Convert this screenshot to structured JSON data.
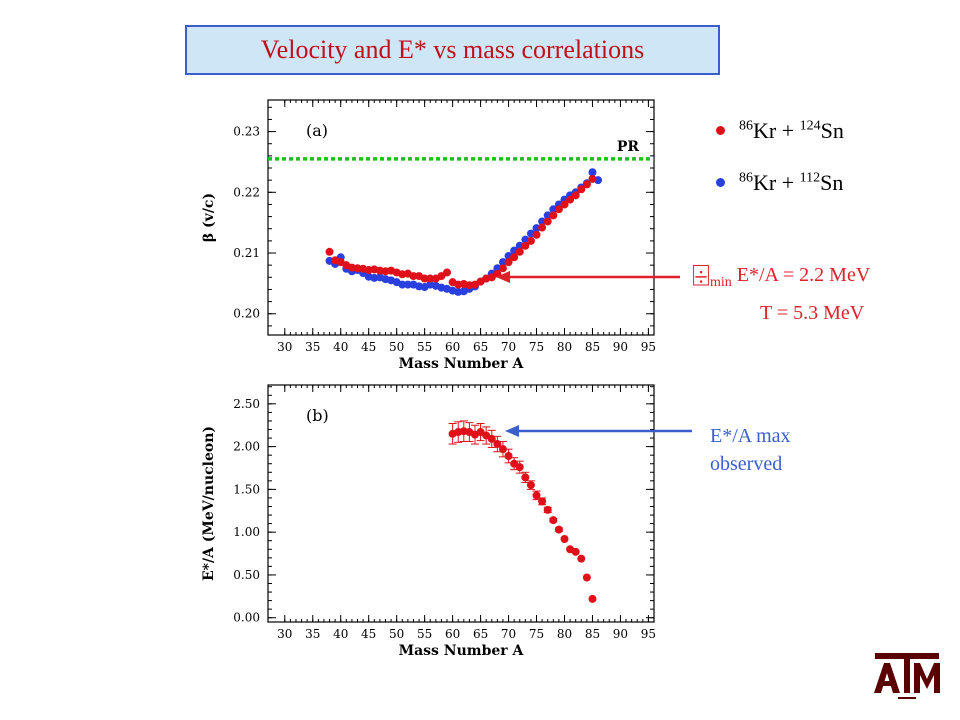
{
  "title": "Velocity and E* vs  mass   correlations",
  "legend": [
    {
      "color": "#e0101a",
      "label_html": "<sup>86</sup>Kr + <sup>124</sup>Sn"
    },
    {
      "color": "#2a3fe0",
      "label_html": "<sup>86</sup>Kr + <sup>112</sup>Sn"
    }
  ],
  "annotation_a": {
    "symbol": "⌹",
    "sub": "min",
    "line1": " E*/A = 2.2 MeV",
    "line2": "T = 5.3 MeV"
  },
  "annotation_b": {
    "line1": "E*/A max",
    "line2": "observed"
  },
  "chart_data": [
    {
      "type": "scatter",
      "panel_label": "(a)",
      "ylabel": "β (v/c)",
      "xlabel": "Mass Number A",
      "xlim": [
        27,
        96
      ],
      "ylim": [
        0.1965,
        0.2352
      ],
      "xticks": [
        30,
        35,
        40,
        45,
        50,
        55,
        60,
        65,
        70,
        75,
        80,
        85,
        90,
        95
      ],
      "yticks": [
        0.2,
        0.21,
        0.22,
        0.23
      ],
      "yticklabels": [
        "0.20",
        "0.21",
        "0.22",
        "0.23"
      ],
      "reference_line": {
        "label": "PR",
        "y": 0.2255,
        "color": "#19c219"
      },
      "series": [
        {
          "name": "86Kr + 124Sn",
          "color": "#e0101a",
          "x": [
            38,
            39,
            40,
            41,
            42,
            43,
            44,
            45,
            46,
            47,
            48,
            49,
            50,
            51,
            52,
            53,
            54,
            55,
            56,
            57,
            58,
            59,
            60,
            61,
            62,
            63,
            64,
            65,
            66,
            67,
            68,
            69,
            70,
            71,
            72,
            73,
            74,
            75,
            76,
            77,
            78,
            79,
            80,
            81,
            82,
            83,
            84,
            85
          ],
          "y": [
            0.2102,
            0.2088,
            0.2085,
            0.208,
            0.2076,
            0.2075,
            0.2074,
            0.2072,
            0.2073,
            0.2071,
            0.207,
            0.2071,
            0.2068,
            0.2065,
            0.2066,
            0.2062,
            0.2062,
            0.2058,
            0.2058,
            0.2058,
            0.2062,
            0.2068,
            0.2052,
            0.2048,
            0.2049,
            0.2047,
            0.2048,
            0.2053,
            0.2058,
            0.206,
            0.2066,
            0.2075,
            0.2085,
            0.2093,
            0.2102,
            0.2112,
            0.212,
            0.213,
            0.2142,
            0.2152,
            0.2162,
            0.2172,
            0.218,
            0.2188,
            0.2195,
            0.2205,
            0.2213,
            0.2222
          ]
        },
        {
          "name": "86Kr + 112Sn",
          "color": "#2a3fe0",
          "x": [
            38,
            39,
            40,
            41,
            42,
            43,
            44,
            45,
            46,
            47,
            48,
            49,
            50,
            51,
            52,
            53,
            54,
            55,
            56,
            57,
            58,
            59,
            60,
            61,
            62,
            63,
            64,
            65,
            66,
            67,
            68,
            69,
            70,
            71,
            72,
            73,
            74,
            75,
            76,
            77,
            78,
            79,
            80,
            81,
            82,
            83,
            84,
            85,
            86
          ],
          "y": [
            0.2087,
            0.2082,
            0.2093,
            0.2074,
            0.207,
            0.2072,
            0.2067,
            0.2061,
            0.2059,
            0.206,
            0.2057,
            0.2055,
            0.2052,
            0.2048,
            0.2048,
            0.2048,
            0.2045,
            0.2044,
            0.2048,
            0.2046,
            0.2043,
            0.2041,
            0.2038,
            0.2036,
            0.2037,
            0.2041,
            0.2045,
            0.2053,
            0.2058,
            0.2066,
            0.2075,
            0.2085,
            0.2095,
            0.2104,
            0.2112,
            0.2122,
            0.2132,
            0.2141,
            0.2152,
            0.2162,
            0.2172,
            0.218,
            0.2188,
            0.2195,
            0.22,
            0.2208,
            0.2215,
            0.2233,
            0.222
          ]
        }
      ]
    },
    {
      "type": "scatter",
      "panel_label": "(b)",
      "ylabel": "E*/A (MeV/nucleon)",
      "xlabel": "Mass Number A",
      "xlim": [
        27,
        96
      ],
      "ylim": [
        -0.05,
        2.72
      ],
      "xticks": [
        30,
        35,
        40,
        45,
        50,
        55,
        60,
        65,
        70,
        75,
        80,
        85,
        90,
        95
      ],
      "yticks": [
        0.0,
        0.5,
        1.0,
        1.5,
        2.0,
        2.5
      ],
      "yticklabels": [
        "0.00",
        "0.50",
        "1.00",
        "1.50",
        "2.00",
        "2.50"
      ],
      "series": [
        {
          "name": "86Kr + 124Sn",
          "color": "#e0101a",
          "x": [
            60,
            61,
            62,
            63,
            64,
            65,
            66,
            67,
            68,
            69,
            70,
            71,
            72,
            73,
            74,
            75,
            76,
            77,
            78,
            79,
            80,
            81,
            82,
            83,
            84,
            85
          ],
          "y": [
            2.15,
            2.17,
            2.18,
            2.17,
            2.14,
            2.17,
            2.13,
            2.09,
            2.03,
            1.97,
            1.89,
            1.8,
            1.76,
            1.64,
            1.55,
            1.43,
            1.36,
            1.26,
            1.14,
            1.03,
            0.92,
            0.8,
            0.77,
            0.69,
            0.47,
            0.22
          ],
          "yerr": [
            0.12,
            0.12,
            0.12,
            0.11,
            0.11,
            0.1,
            0.1,
            0.1,
            0.09,
            0.09,
            0.08,
            0.07,
            0.07,
            0.06,
            0.05,
            0.05,
            0.04,
            0.03,
            0.02,
            0.02,
            0.0,
            0.0,
            0.0,
            0.0,
            0.0,
            0.0
          ]
        }
      ]
    }
  ],
  "logo": {
    "text": "ATM",
    "color": "#5b0000"
  }
}
